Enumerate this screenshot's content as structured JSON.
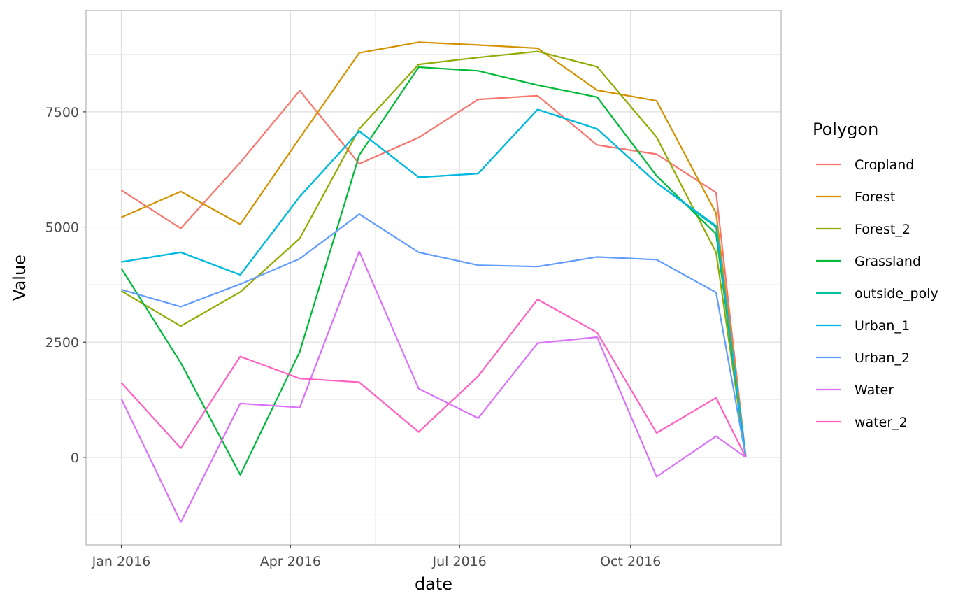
{
  "chart_data": {
    "type": "line",
    "xlabel": "date",
    "ylabel": "Value",
    "legend_title": "Polygon",
    "legend_position": "right",
    "grid": true,
    "x_ticks": [
      "2016-01-01",
      "2016-04-01",
      "2016-07-01",
      "2016-10-01"
    ],
    "x_tick_labels": [
      "Jan 2016",
      "Apr 2016",
      "Jul 2016",
      "Oct 2016"
    ],
    "xlim": [
      "2015-12-13",
      "2016-12-21"
    ],
    "y_ticks": [
      0,
      2500,
      5000,
      7500
    ],
    "y_tick_labels": [
      "0",
      "2500",
      "5000",
      "7500"
    ],
    "ylim": [
      -1900,
      9700
    ],
    "x": [
      "2016-01-01",
      "2016-02-02",
      "2016-03-05",
      "2016-04-06",
      "2016-05-08",
      "2016-06-09",
      "2016-07-11",
      "2016-08-12",
      "2016-09-13",
      "2016-10-15",
      "2016-11-16",
      "2016-12-02"
    ],
    "series": [
      {
        "name": "Cropland",
        "color": "#F8766D",
        "values": [
          5800,
          4970,
          6400,
          7960,
          6370,
          6940,
          7770,
          7850,
          6780,
          6580,
          5750,
          0
        ]
      },
      {
        "name": "Forest",
        "color": "#D39200",
        "values": [
          5210,
          5770,
          5060,
          6930,
          8780,
          9010,
          8950,
          8880,
          7970,
          7740,
          5300,
          0
        ]
      },
      {
        "name": "Forest_2",
        "color": "#93AA00",
        "values": [
          3610,
          2850,
          3590,
          4750,
          7130,
          8530,
          8680,
          8810,
          8480,
          6950,
          4450,
          0
        ]
      },
      {
        "name": "Grassland",
        "color": "#00BA38",
        "values": [
          4100,
          2050,
          -380,
          2290,
          6560,
          8470,
          8390,
          8080,
          7820,
          6110,
          4850,
          0
        ]
      },
      {
        "name": "outside_poly",
        "color": "#00C19F",
        "values": [
          4240,
          4450,
          3960,
          5660,
          7080,
          6080,
          6160,
          7550,
          7130,
          5960,
          5000,
          0
        ]
      },
      {
        "name": "Urban_1",
        "color": "#00B9E3",
        "values": [
          4240,
          4450,
          3960,
          5660,
          7080,
          6080,
          6160,
          7550,
          7130,
          5960,
          5030,
          0
        ]
      },
      {
        "name": "Urban_2",
        "color": "#619CFF",
        "values": [
          3640,
          3270,
          3760,
          4310,
          5280,
          4450,
          4170,
          4140,
          4350,
          4290,
          3580,
          0
        ]
      },
      {
        "name": "Water",
        "color": "#DB72FB",
        "values": [
          1270,
          -1410,
          1170,
          1080,
          4470,
          1490,
          850,
          2480,
          2610,
          -420,
          460,
          0
        ]
      },
      {
        "name": "water_2",
        "color": "#FF61C3",
        "values": [
          1620,
          200,
          2190,
          1710,
          1630,
          550,
          1760,
          3430,
          2710,
          530,
          1290,
          0
        ]
      }
    ]
  }
}
